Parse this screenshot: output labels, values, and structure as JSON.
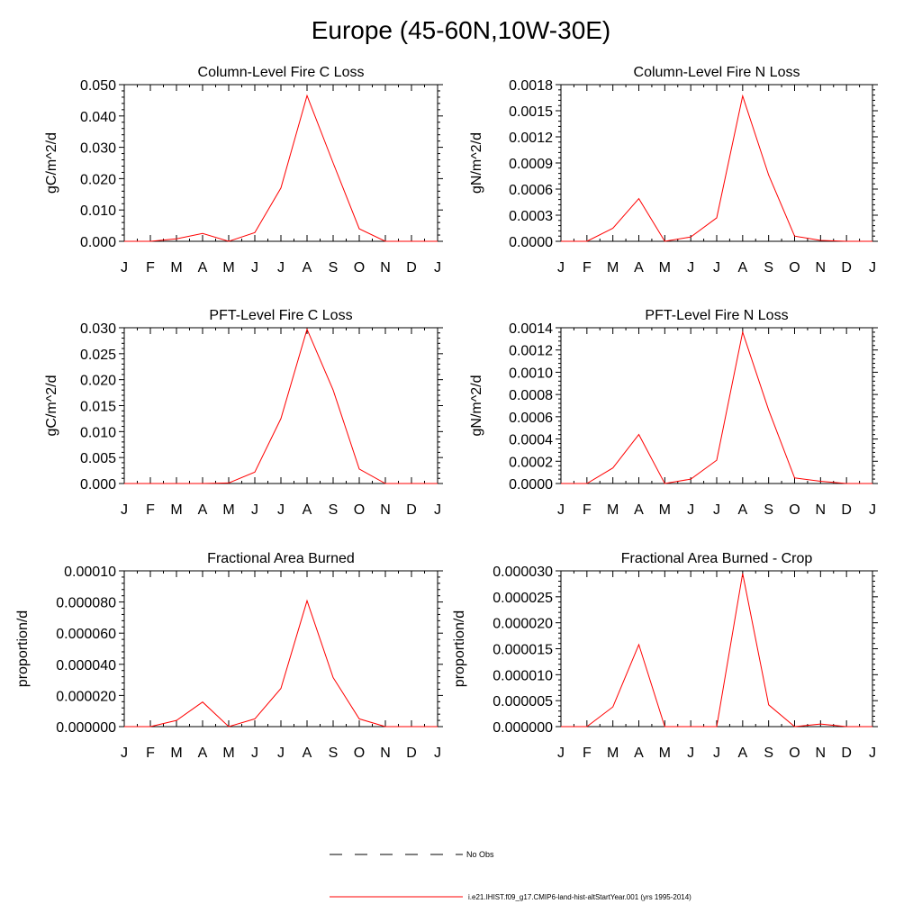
{
  "page_title": "Europe (45-60N,10W-30E)",
  "month_labels": [
    "J",
    "F",
    "M",
    "A",
    "M",
    "J",
    "J",
    "A",
    "S",
    "O",
    "N",
    "D",
    "J"
  ],
  "colors": {
    "model_line": "#ff0000",
    "obs_line": "#000000",
    "axis": "#000000"
  },
  "legend": {
    "obs_label": "No Obs",
    "model_label": "i.e21.IHIST.f09_g17.CMIP6-land-hist-altStartYear.001 (yrs 1995-2014)"
  },
  "chart_data": [
    {
      "type": "line",
      "title": "Column-Level Fire C Loss",
      "ylabel": "gC/m^2/d",
      "ylim": [
        0,
        0.05
      ],
      "yticks": [
        "0.000",
        "0.010",
        "0.020",
        "0.030",
        "0.040",
        "0.050"
      ],
      "categories": [
        "J",
        "F",
        "M",
        "A",
        "M",
        "J",
        "J",
        "A",
        "S",
        "O",
        "N",
        "D",
        "J"
      ],
      "series": [
        {
          "values": [
            0,
            0,
            0.0008,
            0.0025,
            0,
            0.0028,
            0.017,
            0.0465,
            0.025,
            0.004,
            0,
            0,
            0
          ]
        }
      ]
    },
    {
      "type": "line",
      "title": "Column-Level Fire N Loss",
      "ylabel": "gN/m^2/d",
      "ylim": [
        0,
        0.0018
      ],
      "yticks": [
        "0.0000",
        "0.0003",
        "0.0006",
        "0.0009",
        "0.0012",
        "0.0015",
        "0.0018"
      ],
      "categories": [
        "J",
        "F",
        "M",
        "A",
        "M",
        "J",
        "J",
        "A",
        "S",
        "O",
        "N",
        "D",
        "J"
      ],
      "series": [
        {
          "values": [
            0,
            0,
            0.00015,
            0.00049,
            0,
            5e-05,
            0.00027,
            0.00167,
            0.00076,
            6e-05,
            1e-05,
            0,
            0
          ]
        }
      ]
    },
    {
      "type": "line",
      "title": "PFT-Level Fire C Loss",
      "ylabel": "gC/m^2/d",
      "ylim": [
        0,
        0.03
      ],
      "yticks": [
        "0.000",
        "0.005",
        "0.010",
        "0.015",
        "0.020",
        "0.025",
        "0.030"
      ],
      "categories": [
        "J",
        "F",
        "M",
        "A",
        "M",
        "J",
        "J",
        "A",
        "S",
        "O",
        "N",
        "D",
        "J"
      ],
      "series": [
        {
          "values": [
            0,
            0,
            0,
            0,
            0.0001,
            0.0022,
            0.0125,
            0.0297,
            0.018,
            0.0028,
            0,
            0,
            0
          ]
        }
      ]
    },
    {
      "type": "line",
      "title": "PFT-Level Fire N Loss",
      "ylabel": "gN/m^2/d",
      "ylim": [
        0,
        0.0014
      ],
      "yticks": [
        "0.0000",
        "0.0002",
        "0.0004",
        "0.0006",
        "0.0008",
        "0.0010",
        "0.0012",
        "0.0014"
      ],
      "categories": [
        "J",
        "F",
        "M",
        "A",
        "M",
        "J",
        "J",
        "A",
        "S",
        "O",
        "N",
        "D",
        "J"
      ],
      "series": [
        {
          "values": [
            0,
            0,
            0.00014,
            0.00044,
            0,
            4e-05,
            0.00021,
            0.00136,
            0.00066,
            5e-05,
            2e-05,
            0,
            0
          ]
        }
      ]
    },
    {
      "type": "line",
      "title": "Fractional Area Burned",
      "ylabel": "proportion/d",
      "ylim": [
        0,
        0.0001
      ],
      "yticks": [
        "0.000000",
        "0.000020",
        "0.000040",
        "0.000060",
        "0.000080",
        "0.00010"
      ],
      "categories": [
        "J",
        "F",
        "M",
        "A",
        "M",
        "J",
        "J",
        "A",
        "S",
        "O",
        "N",
        "D",
        "J"
      ],
      "series": [
        {
          "values": [
            0,
            0,
            4e-06,
            1.58e-05,
            0,
            5e-06,
            2.45e-05,
            8.08e-05,
            3.15e-05,
            5e-06,
            0,
            0,
            0
          ]
        }
      ]
    },
    {
      "type": "line",
      "title": "Fractional Area Burned - Crop",
      "ylabel": "proportion/d",
      "ylim": [
        0,
        3e-05
      ],
      "yticks": [
        "0.000000",
        "0.000005",
        "0.000010",
        "0.000015",
        "0.000020",
        "0.000025",
        "0.000030"
      ],
      "categories": [
        "J",
        "F",
        "M",
        "A",
        "M",
        "J",
        "J",
        "A",
        "S",
        "O",
        "N",
        "D",
        "J"
      ],
      "series": [
        {
          "values": [
            0,
            0,
            3.8e-06,
            1.58e-05,
            0,
            0,
            0,
            2.95e-05,
            4.2e-06,
            0,
            5e-07,
            0,
            0
          ]
        }
      ]
    }
  ]
}
